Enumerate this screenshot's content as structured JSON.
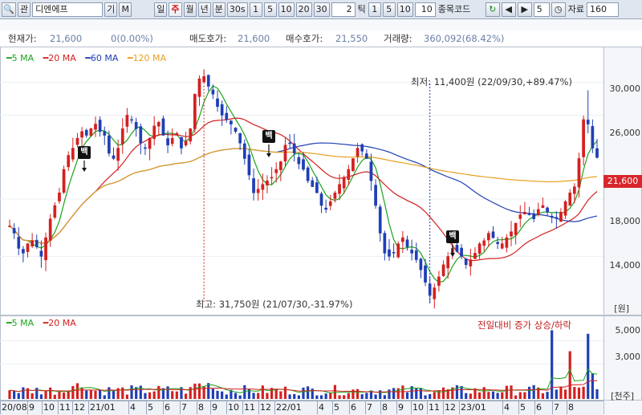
{
  "toolbar": {
    "search_icon": "search-icon",
    "search_glyph": "🔍",
    "search_mode": "관",
    "stock_name": "디엔에프",
    "info_btn": "기",
    "memo_btn": "M",
    "period_tabs": [
      "일",
      "주",
      "월",
      "년",
      "분",
      "30s"
    ],
    "period_selected": "주",
    "interval_a": [
      "1",
      "5",
      "10",
      "20",
      "30"
    ],
    "tick_value": "2",
    "tick_label": "틱",
    "interval_b": [
      "1",
      "5",
      "10"
    ],
    "tick_count": "10",
    "code_label": "종목코드",
    "refresh_icon": "refresh-icon",
    "refresh_glyph": "↻",
    "prev_icon": "prev-arrow-icon",
    "prev_glyph": "◀",
    "next_icon": "next-arrow-icon",
    "next_glyph": "▶",
    "step_value": "5",
    "clock_icon": "clock-icon",
    "clock_glyph": "◷",
    "data_label": "자료",
    "data_count": "160"
  },
  "info": {
    "price_label": "현재가:",
    "price": "21,600",
    "change": "0(0.00%)",
    "ask_label": "매도호가:",
    "ask": "21,600",
    "bid_label": "매수호가:",
    "bid": "21,550",
    "volume_label": "거래량:",
    "volume": "360,092(68.42%)"
  },
  "legend_price": [
    {
      "label": "5 MA",
      "color": "#1aa31a"
    },
    {
      "label": "20 MA",
      "color": "#d42020"
    },
    {
      "label": "60 MA",
      "color": "#1f3fb5"
    },
    {
      "label": "120 MA",
      "color": "#e8a020"
    }
  ],
  "legend_volume": [
    {
      "label": "5 MA",
      "color": "#1aa31a"
    },
    {
      "label": "20 MA",
      "color": "#d42020"
    }
  ],
  "annotations": {
    "low": "최저: 11,400원 (22/09/30,+89.47%)",
    "high": "최고: 31,750원 (21/07/30,-31.97%)",
    "flag_text": "백",
    "volume_note": "전일대비 증가 상승/하락"
  },
  "price_axis": {
    "ticks": [
      "30,000",
      "26,000",
      "18,000",
      "14,000"
    ],
    "current_box": "21,600",
    "unit": "[원]"
  },
  "volume_axis": {
    "ticks": [
      "5,000",
      "3,000"
    ],
    "unit": "[천주]"
  },
  "x_axis": {
    "labels": [
      "20/08",
      "9",
      "10",
      "11",
      "12",
      "21/01",
      "4",
      "5",
      "6",
      "7",
      "8",
      "9",
      "10",
      "11",
      "12",
      "22/01",
      "4",
      "5",
      "6",
      "7",
      "8",
      "9",
      "10",
      "11",
      "12",
      "23/01",
      "4",
      "5",
      "6",
      "7",
      "8"
    ]
  },
  "colors": {
    "up": "#d42020",
    "down": "#1f3fb5"
  },
  "chart_data": {
    "type": "candlestick",
    "price_range": [
      11000,
      32500
    ],
    "volume_range": [
      0,
      6000
    ],
    "weekly_close_path": [
      16000,
      15500,
      14500,
      14200,
      14800,
      15000,
      14600,
      14000,
      15200,
      16500,
      17500,
      18500,
      20500,
      21800,
      22500,
      23500,
      24200,
      23800,
      24500,
      25000,
      24200,
      23800,
      22000,
      21500,
      22500,
      24500,
      26000,
      25500,
      24500,
      23000,
      22500,
      23500,
      24800,
      25200,
      23800,
      22800,
      23500,
      24000,
      22500,
      23200,
      24500,
      28500,
      30500,
      30800,
      29500,
      28500,
      27000,
      26000,
      25500,
      25000,
      24200,
      23000,
      21500,
      20000,
      18500,
      18800,
      19200,
      19500,
      19800,
      20500,
      21200,
      22800,
      23000,
      22000,
      21000,
      20500,
      19500,
      19000,
      18500,
      17500,
      17200,
      17800,
      18500,
      19200,
      19800,
      20500,
      21500,
      22500,
      22200,
      21500,
      19500,
      17500,
      15500,
      14200,
      14000,
      14200,
      14800,
      15200,
      14600,
      14200,
      13800,
      13200,
      12500,
      11800,
      12200,
      12800,
      13500,
      14000,
      14500,
      14300,
      14000,
      13500,
      13800,
      14200,
      14800,
      15000,
      15500,
      15200,
      14800,
      14800,
      15200,
      15600,
      16200,
      16800,
      17000,
      16800,
      16500,
      17200,
      17500,
      17000,
      16600,
      16600,
      17000,
      17800,
      18500,
      19000,
      21500,
      25500,
      25000,
      22500,
      21600
    ]
  }
}
